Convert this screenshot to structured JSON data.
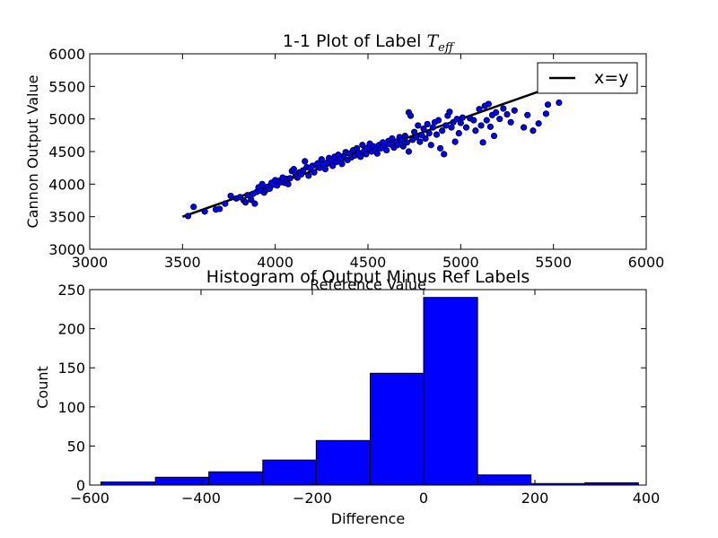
{
  "chart_data": [
    {
      "type": "scatter",
      "title": "1-1 Plot of Label ",
      "title_math": "T",
      "title_math_sub": "eff",
      "xlabel": "Reference Value",
      "ylabel": "Cannon Output Value",
      "xlim": [
        3000,
        6000
      ],
      "ylim": [
        3000,
        6000
      ],
      "xticks": [
        "3000",
        "3500",
        "4000",
        "4500",
        "5000",
        "5500",
        "6000"
      ],
      "yticks": [
        "3000",
        "3500",
        "4000",
        "4500",
        "5000",
        "5500",
        "6000"
      ],
      "grid": false,
      "legend": {
        "placement": "top-right",
        "entries": [
          "x=y"
        ]
      },
      "line": {
        "name": "x=y",
        "x": [
          3500,
          5600
        ],
        "y": [
          3500,
          5600
        ],
        "color": "#000000"
      },
      "point_color": "#0000ff",
      "points": [
        [
          3530,
          3510
        ],
        [
          3560,
          3650
        ],
        [
          3620,
          3580
        ],
        [
          3680,
          3610
        ],
        [
          3700,
          3620
        ],
        [
          3730,
          3700
        ],
        [
          3760,
          3820
        ],
        [
          3790,
          3780
        ],
        [
          3810,
          3800
        ],
        [
          3830,
          3750
        ],
        [
          3840,
          3720
        ],
        [
          3850,
          3830
        ],
        [
          3870,
          3760
        ],
        [
          3880,
          3850
        ],
        [
          3890,
          3700
        ],
        [
          3900,
          3880
        ],
        [
          3910,
          3950
        ],
        [
          3920,
          3900
        ],
        [
          3930,
          4000
        ],
        [
          3940,
          3870
        ],
        [
          3950,
          3910
        ],
        [
          3960,
          3960
        ],
        [
          3970,
          3930
        ],
        [
          3980,
          4020
        ],
        [
          3990,
          3990
        ],
        [
          4000,
          4060
        ],
        [
          4010,
          3980
        ],
        [
          4020,
          4050
        ],
        [
          4030,
          4030
        ],
        [
          4040,
          4100
        ],
        [
          4050,
          4020
        ],
        [
          4060,
          4080
        ],
        [
          4070,
          4000
        ],
        [
          4080,
          4090
        ],
        [
          4090,
          4200
        ],
        [
          4100,
          4230
        ],
        [
          4110,
          4140
        ],
        [
          4120,
          4100
        ],
        [
          4130,
          4180
        ],
        [
          4140,
          4150
        ],
        [
          4150,
          4210
        ],
        [
          4160,
          4350
        ],
        [
          4170,
          4260
        ],
        [
          4180,
          4130
        ],
        [
          4190,
          4240
        ],
        [
          4200,
          4280
        ],
        [
          4210,
          4180
        ],
        [
          4220,
          4290
        ],
        [
          4230,
          4320
        ],
        [
          4240,
          4250
        ],
        [
          4250,
          4380
        ],
        [
          4260,
          4300
        ],
        [
          4270,
          4230
        ],
        [
          4280,
          4330
        ],
        [
          4290,
          4400
        ],
        [
          4300,
          4360
        ],
        [
          4310,
          4280
        ],
        [
          4320,
          4420
        ],
        [
          4330,
          4340
        ],
        [
          4340,
          4450
        ],
        [
          4350,
          4390
        ],
        [
          4360,
          4310
        ],
        [
          4370,
          4430
        ],
        [
          4380,
          4490
        ],
        [
          4390,
          4370
        ],
        [
          4400,
          4470
        ],
        [
          4410,
          4410
        ],
        [
          4420,
          4520
        ],
        [
          4430,
          4440
        ],
        [
          4440,
          4550
        ],
        [
          4450,
          4480
        ],
        [
          4460,
          4420
        ],
        [
          4470,
          4600
        ],
        [
          4480,
          4510
        ],
        [
          4490,
          4460
        ],
        [
          4500,
          4560
        ],
        [
          4510,
          4620
        ],
        [
          4520,
          4500
        ],
        [
          4530,
          4580
        ],
        [
          4540,
          4530
        ],
        [
          4550,
          4470
        ],
        [
          4560,
          4600
        ],
        [
          4570,
          4550
        ],
        [
          4580,
          4640
        ],
        [
          4590,
          4590
        ],
        [
          4600,
          4520
        ],
        [
          4610,
          4660
        ],
        [
          4620,
          4610
        ],
        [
          4630,
          4700
        ],
        [
          4640,
          4560
        ],
        [
          4650,
          4650
        ],
        [
          4660,
          4600
        ],
        [
          4670,
          4720
        ],
        [
          4680,
          4670
        ],
        [
          4690,
          4580
        ],
        [
          4700,
          4740
        ],
        [
          4710,
          4640
        ],
        [
          4720,
          4500
        ],
        [
          4720,
          5100
        ],
        [
          4730,
          5050
        ],
        [
          4740,
          4680
        ],
        [
          4750,
          4800
        ],
        [
          4760,
          4720
        ],
        [
          4770,
          4900
        ],
        [
          4780,
          4650
        ],
        [
          4790,
          4750
        ],
        [
          4800,
          4850
        ],
        [
          4810,
          4700
        ],
        [
          4820,
          4920
        ],
        [
          4830,
          4780
        ],
        [
          4840,
          4600
        ],
        [
          4850,
          4870
        ],
        [
          4860,
          4950
        ],
        [
          4870,
          4760
        ],
        [
          4880,
          4980
        ],
        [
          4890,
          4550
        ],
        [
          4900,
          4820
        ],
        [
          4910,
          4460
        ],
        [
          4920,
          4900
        ],
        [
          4930,
          5050
        ],
        [
          4940,
          5110
        ],
        [
          4950,
          4870
        ],
        [
          4960,
          4950
        ],
        [
          4970,
          4650
        ],
        [
          4980,
          5000
        ],
        [
          4990,
          4780
        ],
        [
          5000,
          4940
        ],
        [
          5010,
          5020
        ],
        [
          5030,
          4870
        ],
        [
          5050,
          5010
        ],
        [
          5070,
          4980
        ],
        [
          5080,
          4820
        ],
        [
          5100,
          5150
        ],
        [
          5110,
          4900
        ],
        [
          5120,
          4640
        ],
        [
          5130,
          5200
        ],
        [
          5140,
          4980
        ],
        [
          5150,
          5230
        ],
        [
          5160,
          4880
        ],
        [
          5170,
          5060
        ],
        [
          5180,
          4740
        ],
        [
          5190,
          5100
        ],
        [
          5210,
          5000
        ],
        [
          5230,
          5160
        ],
        [
          5250,
          5070
        ],
        [
          5270,
          4950
        ],
        [
          5290,
          5130
        ],
        [
          5340,
          4870
        ],
        [
          5360,
          5060
        ],
        [
          5390,
          4820
        ],
        [
          5420,
          4930
        ],
        [
          5460,
          5080
        ],
        [
          5470,
          5220
        ],
        [
          5530,
          5250
        ]
      ]
    },
    {
      "type": "bar",
      "title": "Histogram of Output Minus Ref Labels",
      "xlabel": "Difference",
      "ylabel": "Count",
      "xlim": [
        -600,
        400
      ],
      "ylim": [
        0,
        250
      ],
      "xticks": [
        "−600",
        "−400",
        "−200",
        "0",
        "200",
        "400"
      ],
      "yticks": [
        "0",
        "50",
        "100",
        "150",
        "200",
        "250"
      ],
      "grid": false,
      "bar_color": "#0000ff",
      "bins": [
        {
          "start": -580,
          "end": -482,
          "count": 4
        },
        {
          "start": -482,
          "end": -386,
          "count": 10
        },
        {
          "start": -386,
          "end": -289,
          "count": 17
        },
        {
          "start": -289,
          "end": -193,
          "count": 32
        },
        {
          "start": -193,
          "end": -96,
          "count": 57
        },
        {
          "start": -96,
          "end": 0,
          "count": 143
        },
        {
          "start": 0,
          "end": 97,
          "count": 240
        },
        {
          "start": 97,
          "end": 193,
          "count": 13
        },
        {
          "start": 193,
          "end": 290,
          "count": 2
        },
        {
          "start": 290,
          "end": 386,
          "count": 3
        }
      ]
    }
  ]
}
